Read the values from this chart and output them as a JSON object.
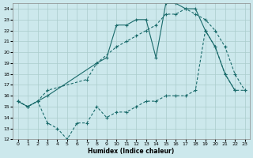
{
  "xlabel": "Humidex (Indice chaleur)",
  "xlim": [
    -0.5,
    23.5
  ],
  "ylim": [
    12,
    24.5
  ],
  "yticks": [
    12,
    13,
    14,
    15,
    16,
    17,
    18,
    19,
    20,
    21,
    22,
    23,
    24
  ],
  "xticks": [
    0,
    1,
    2,
    3,
    4,
    5,
    6,
    7,
    8,
    9,
    10,
    11,
    12,
    13,
    14,
    15,
    16,
    17,
    18,
    19,
    20,
    21,
    22,
    23
  ],
  "bg_color": "#cce8ec",
  "grid_color": "#aacccc",
  "line_color": "#1a6b6b",
  "line1_x": [
    0,
    1,
    2,
    3,
    8,
    9,
    10,
    11,
    12,
    13,
    14,
    15,
    16,
    17,
    18,
    19,
    20,
    21,
    22
  ],
  "line1_y": [
    15.5,
    15.0,
    15.5,
    16.0,
    19.0,
    19.5,
    22.5,
    22.5,
    23.0,
    23.0,
    19.5,
    24.5,
    24.5,
    24.0,
    24.0,
    22.0,
    20.5,
    18.0,
    16.5
  ],
  "line2_x": [
    0,
    1,
    2,
    3,
    7,
    8,
    10,
    11,
    12,
    13,
    14,
    15,
    16,
    17,
    18,
    19,
    20,
    21,
    22,
    23
  ],
  "line2_y": [
    15.5,
    15.0,
    15.5,
    16.5,
    17.5,
    19.0,
    20.5,
    21.0,
    21.5,
    22.0,
    22.5,
    23.5,
    23.5,
    24.0,
    23.5,
    23.0,
    22.0,
    20.5,
    18.0,
    16.5
  ],
  "line3_x": [
    0,
    1,
    2,
    3,
    4,
    5,
    6,
    7,
    8,
    9,
    10,
    11,
    12,
    13,
    14,
    15,
    16,
    17,
    18,
    19,
    20,
    21,
    22,
    23
  ],
  "line3_y": [
    15.5,
    15.0,
    15.5,
    13.5,
    13.0,
    12.0,
    13.5,
    13.5,
    15.0,
    14.0,
    14.5,
    14.5,
    15.0,
    15.5,
    15.5,
    16.0,
    16.0,
    16.0,
    16.5,
    22.0,
    20.5,
    18.0,
    16.5,
    16.5
  ]
}
